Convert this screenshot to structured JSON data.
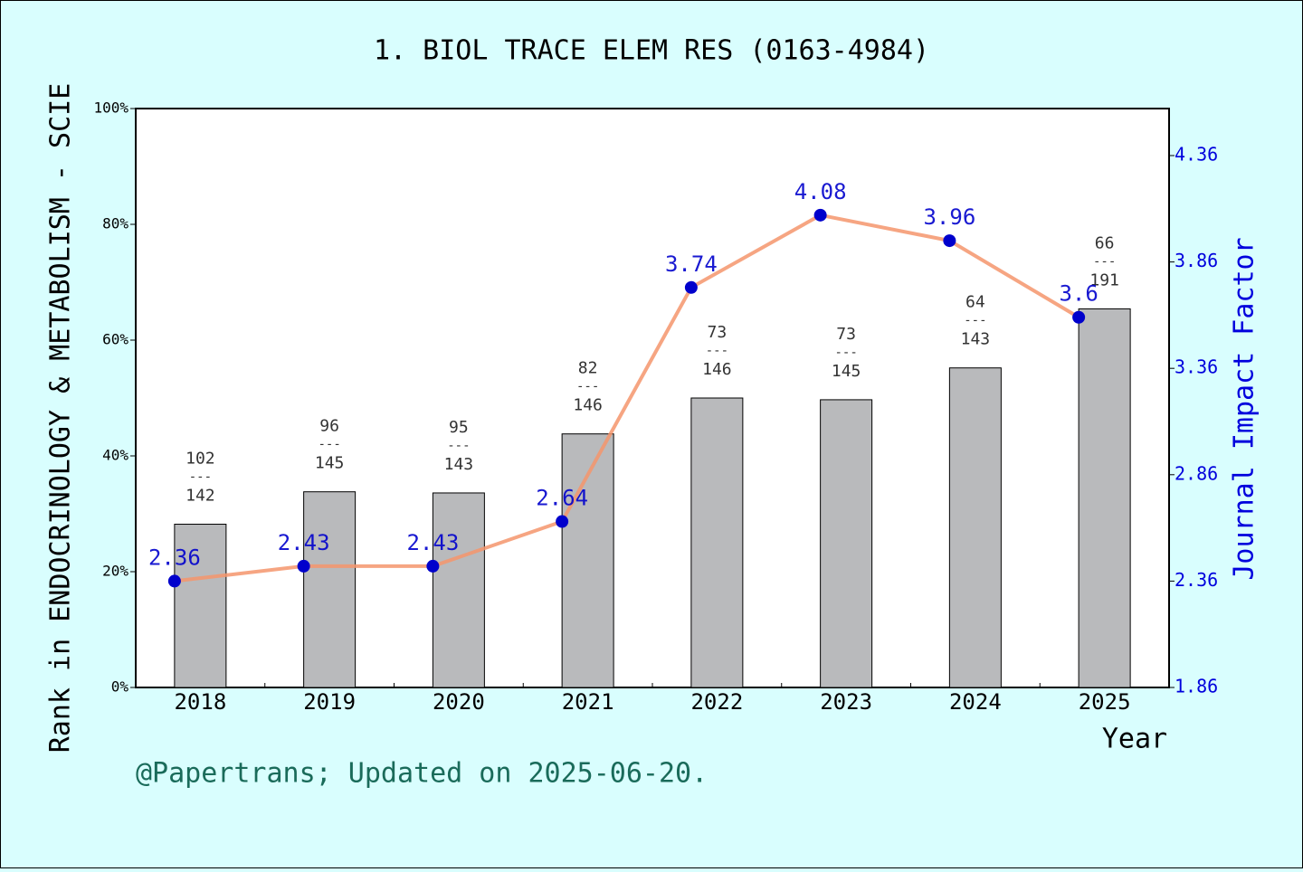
{
  "chart_data": {
    "type": "bar",
    "title": "1. BIOL TRACE ELEM RES (0163-4984)",
    "categories": [
      "2018",
      "2019",
      "2020",
      "2021",
      "2022",
      "2023",
      "2024",
      "2025"
    ],
    "values": [
      28.2,
      33.8,
      33.6,
      43.8,
      50.0,
      49.7,
      55.2,
      65.4
    ],
    "color": "#b9babc",
    "ranks": [
      102,
      96,
      95,
      82,
      73,
      73,
      64,
      66
    ],
    "totals": [
      142,
      145,
      143,
      146,
      146,
      145,
      143,
      191
    ],
    "rank_separator": "---",
    "x_label": "Year",
    "y_label": "Rank in ENDOCRINOLOGY & METABOLISM - SCIE",
    "y2_label": "Journal Impact Factor",
    "footer": "@Papertrans; Updated on 2025-06-20.",
    "ylim": [
      0,
      100
    ],
    "yticks": [
      {
        "value": 0,
        "label": "0%"
      },
      {
        "value": 20,
        "label": "20%"
      },
      {
        "value": 40,
        "label": "40%"
      },
      {
        "value": 60,
        "label": "60%"
      },
      {
        "value": 80,
        "label": "80%"
      },
      {
        "value": 100,
        "label": "100%"
      }
    ],
    "y2lim": [
      1.86,
      4.581
    ],
    "y2ticks": [
      1.86,
      2.36,
      2.86,
      3.36,
      3.86,
      4.36
    ],
    "line": {
      "type": "line",
      "axis": "y2",
      "values": [
        2.36,
        2.43,
        2.43,
        2.64,
        3.74,
        4.08,
        3.96,
        3.6
      ],
      "color": "#f4956c",
      "marker_color": "#0000cc"
    }
  }
}
